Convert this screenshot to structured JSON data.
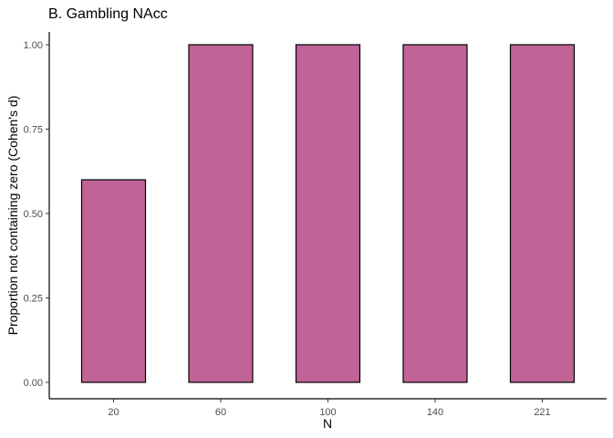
{
  "chart_data": {
    "type": "bar",
    "title": "B. Gambling NAcc",
    "xlabel": "N",
    "ylabel": "Proportion not containing zero (Cohen's d)",
    "categories": [
      "20",
      "60",
      "100",
      "140",
      "221"
    ],
    "values": [
      0.6,
      1.0,
      1.0,
      1.0,
      1.0
    ],
    "ylim": [
      0,
      1
    ],
    "yticks": [
      "0.00",
      "0.25",
      "0.50",
      "0.75",
      "1.00"
    ],
    "grid": false,
    "legend": "none",
    "colors": {
      "bar_fill": "#C06396",
      "bar_stroke": "#000000",
      "axis": "#000000"
    }
  }
}
